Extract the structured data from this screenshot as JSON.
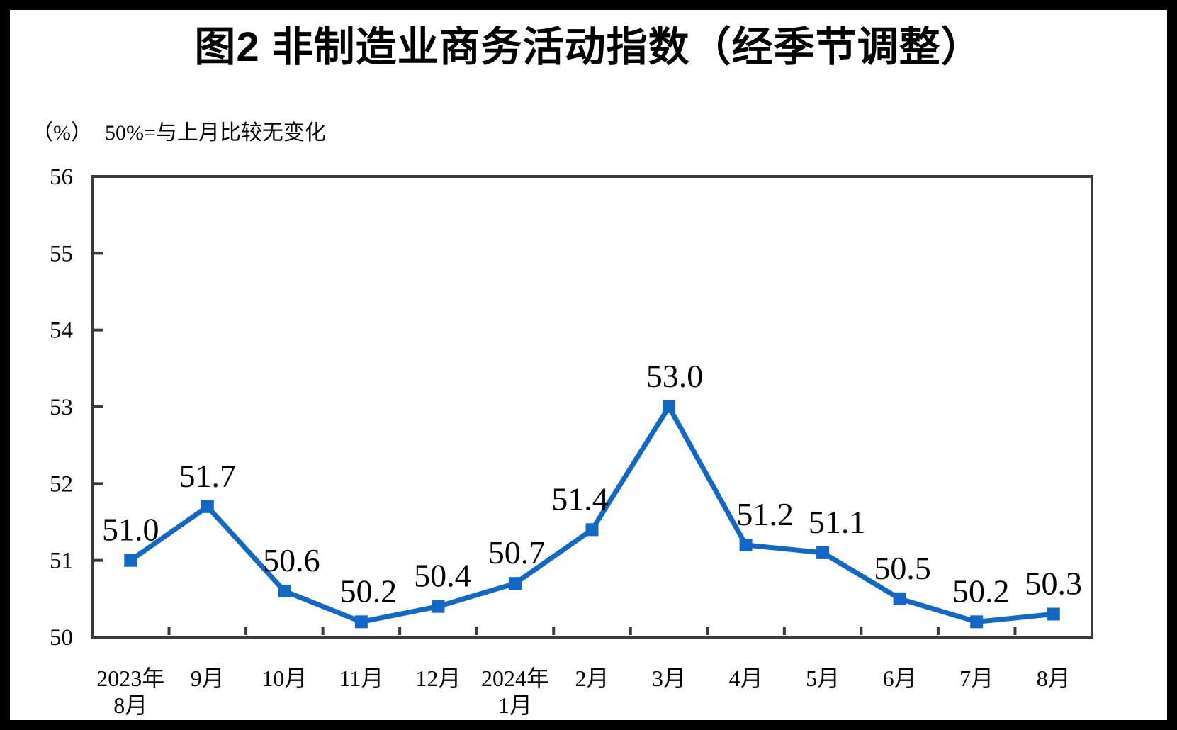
{
  "title": "图2 非制造业商务活动指数（经季节调整）",
  "subtitle": {
    "unit": "（%）",
    "note": "50%=与上月比较无变化"
  },
  "chart_data": {
    "type": "line",
    "title": "图2 非制造业商务活动指数（经季节调整）",
    "unit_label": "（%）",
    "baseline_note": "50%=与上月比较无变化",
    "categories": [
      "2023年\n8月",
      "9月",
      "10月",
      "11月",
      "12月",
      "2024年\n1月",
      "2月",
      "3月",
      "4月",
      "5月",
      "6月",
      "7月",
      "8月"
    ],
    "values": [
      51.0,
      51.7,
      50.6,
      50.2,
      50.4,
      50.7,
      51.4,
      53.0,
      51.2,
      51.1,
      50.5,
      50.2,
      50.3
    ],
    "data_labels": [
      "51.0",
      "51.7",
      "50.6",
      "50.2",
      "50.4",
      "50.7",
      "51.4",
      "53.0",
      "51.2",
      "51.1",
      "50.5",
      "50.2",
      "50.3"
    ],
    "ylim": [
      50,
      56
    ],
    "yticks": [
      50,
      51,
      52,
      53,
      54,
      55,
      56
    ],
    "grid": false,
    "legend": null,
    "series_color": "#1168C6",
    "axis_color": "#3a3a3a",
    "text_color": "#000000",
    "frame_color": "#000000",
    "background_color": "#ffffff"
  }
}
